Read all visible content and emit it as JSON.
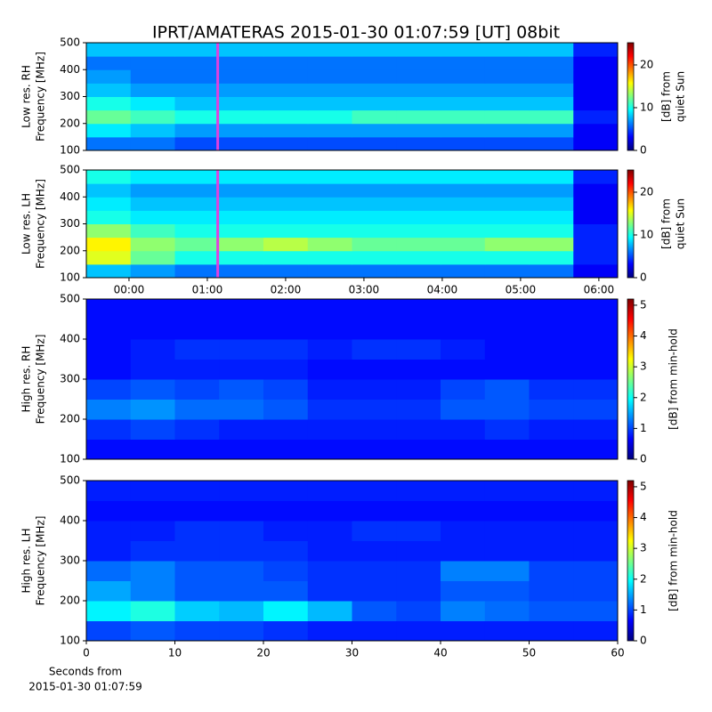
{
  "title": "IPRT/AMATERAS 2015-01-30 01:07:59 [UT]   08bit",
  "chart_data": [
    {
      "type": "heatmap",
      "colormap": "jet",
      "ylabel": [
        "Low res. RH",
        "Frequency [MHz]"
      ],
      "ylim": [
        100,
        500
      ],
      "yticks": [
        100,
        200,
        300,
        400,
        500
      ],
      "xlim": [
        -0.545,
        6.24
      ],
      "marker_x": 1.133,
      "marker_color": "#e040e0",
      "clim": [
        0,
        25.2
      ],
      "cticks": [
        0,
        10,
        20
      ],
      "clabel": [
        "[dB] from",
        "quiet Sun"
      ],
      "z": [
        [
          6,
          6,
          5,
          5,
          5,
          5,
          5,
          5,
          5,
          5,
          5,
          3
        ],
        [
          9,
          8,
          7,
          7,
          7,
          7,
          7,
          7,
          7,
          7,
          7,
          3
        ],
        [
          12,
          11,
          10,
          10,
          10,
          10,
          11,
          11,
          11,
          11,
          11,
          4
        ],
        [
          10,
          9,
          8,
          8,
          8,
          8,
          8,
          8,
          8,
          8,
          8,
          3
        ],
        [
          8,
          7,
          7,
          7,
          7,
          7,
          7,
          7,
          7,
          7,
          7,
          3
        ],
        [
          7,
          6,
          6,
          6,
          6,
          6,
          6,
          6,
          6,
          6,
          6,
          3
        ],
        [
          6,
          6,
          6,
          6,
          6,
          6,
          6,
          6,
          6,
          6,
          6,
          3
        ],
        [
          8,
          8,
          8,
          8,
          8,
          8,
          8,
          8,
          8,
          8,
          8,
          4
        ]
      ]
    },
    {
      "type": "heatmap",
      "colormap": "jet",
      "ylabel": [
        "Low res. LH",
        "Frequency [MHz]"
      ],
      "ylim": [
        100,
        500
      ],
      "yticks": [
        100,
        200,
        300,
        400,
        500
      ],
      "xlim": [
        -0.545,
        6.24
      ],
      "xticks": [
        {
          "value": 0,
          "label": "00:00"
        },
        {
          "value": 1,
          "label": "01:00"
        },
        {
          "value": 2,
          "label": "02:00"
        },
        {
          "value": 3,
          "label": "03:00"
        },
        {
          "value": 4,
          "label": "04:00"
        },
        {
          "value": 5,
          "label": "05:00"
        },
        {
          "value": 6,
          "label": "06:00"
        }
      ],
      "marker_x": 1.133,
      "marker_color": "#e040e0",
      "clim": [
        0,
        25.2
      ],
      "cticks": [
        0,
        10,
        20
      ],
      "clabel": [
        "[dB] from",
        "quiet Sun"
      ],
      "z": [
        [
          8,
          7,
          6,
          6,
          6,
          6,
          6,
          6,
          6,
          6,
          6,
          3
        ],
        [
          15,
          12,
          10,
          10,
          10,
          10,
          10,
          10,
          10,
          10,
          10,
          4
        ],
        [
          16,
          13,
          12,
          13,
          14,
          13,
          12,
          12,
          12,
          13,
          13,
          4
        ],
        [
          13,
          11,
          10,
          10,
          10,
          10,
          10,
          10,
          10,
          10,
          10,
          4
        ],
        [
          10,
          9,
          9,
          9,
          9,
          9,
          9,
          9,
          9,
          9,
          9,
          3
        ],
        [
          9,
          8,
          8,
          8,
          8,
          8,
          8,
          8,
          8,
          8,
          8,
          3
        ],
        [
          8,
          7,
          7,
          7,
          7,
          7,
          7,
          7,
          7,
          7,
          7,
          3
        ],
        [
          10,
          9,
          9,
          9,
          9,
          9,
          9,
          9,
          9,
          9,
          9,
          4
        ]
      ]
    },
    {
      "type": "heatmap",
      "colormap": "jet",
      "ylabel": [
        "High res. RH",
        "Frequency [MHz]"
      ],
      "ylim": [
        100,
        500
      ],
      "yticks": [
        100,
        200,
        300,
        400,
        500
      ],
      "xlim": [
        0,
        60
      ],
      "clim": [
        0,
        5.2
      ],
      "cticks": [
        0,
        1,
        2,
        3,
        4,
        5
      ],
      "clabel": [
        "[dB] from min-hold"
      ],
      "z": [
        [
          0.7,
          0.7,
          0.7,
          0.7,
          0.7,
          0.7,
          0.7,
          0.7,
          0.7,
          0.7,
          0.7,
          0.7
        ],
        [
          0.9,
          1.0,
          0.9,
          0.8,
          0.8,
          0.8,
          0.8,
          0.8,
          0.8,
          0.9,
          0.8,
          0.8
        ],
        [
          1.3,
          1.4,
          1.2,
          1.2,
          1.1,
          0.9,
          0.9,
          0.9,
          1.1,
          1.1,
          1.0,
          1.0
        ],
        [
          1.0,
          1.1,
          1.0,
          1.1,
          1.0,
          0.8,
          0.8,
          0.8,
          1.0,
          1.1,
          0.9,
          0.9
        ],
        [
          0.7,
          0.8,
          0.8,
          0.8,
          0.8,
          0.7,
          0.7,
          0.7,
          0.7,
          0.7,
          0.7,
          0.7
        ],
        [
          0.7,
          0.8,
          0.9,
          0.9,
          0.9,
          0.8,
          0.9,
          0.9,
          0.8,
          0.7,
          0.7,
          0.7
        ],
        [
          0.7,
          0.7,
          0.7,
          0.7,
          0.7,
          0.7,
          0.7,
          0.7,
          0.7,
          0.7,
          0.7,
          0.7
        ],
        [
          0.7,
          0.7,
          0.7,
          0.7,
          0.7,
          0.7,
          0.7,
          0.7,
          0.7,
          0.7,
          0.7,
          0.7
        ]
      ]
    },
    {
      "type": "heatmap",
      "colormap": "jet",
      "ylabel": [
        "High res. LH",
        "Frequency [MHz]"
      ],
      "ylim": [
        100,
        500
      ],
      "yticks": [
        100,
        200,
        300,
        400,
        500
      ],
      "xlim": [
        0,
        60
      ],
      "xticks": [
        0,
        10,
        20,
        30,
        40,
        50,
        60
      ],
      "xlabel": [
        "Seconds from",
        "2015-01-30 01:07:59"
      ],
      "clim": [
        0,
        5.2
      ],
      "cticks": [
        0,
        1,
        2,
        3,
        4,
        5
      ],
      "clabel": [
        "[dB] from min-hold"
      ],
      "z": [
        [
          1.0,
          1.1,
          1.0,
          1.0,
          0.9,
          0.8,
          0.8,
          0.8,
          0.8,
          0.8,
          0.8,
          0.8
        ],
        [
          1.9,
          2.1,
          1.7,
          1.6,
          1.9,
          1.6,
          1.1,
          1.0,
          1.3,
          1.2,
          1.1,
          1.1
        ],
        [
          1.5,
          1.3,
          1.1,
          1.1,
          1.1,
          0.9,
          0.9,
          0.9,
          1.1,
          1.1,
          1.0,
          1.0
        ],
        [
          1.2,
          1.3,
          1.1,
          1.1,
          1.0,
          0.9,
          0.9,
          0.9,
          1.3,
          1.3,
          1.0,
          1.0
        ],
        [
          0.8,
          0.9,
          0.9,
          0.9,
          0.9,
          0.8,
          0.8,
          0.8,
          0.8,
          0.8,
          0.8,
          0.8
        ],
        [
          0.8,
          0.8,
          0.9,
          0.9,
          0.8,
          0.8,
          0.9,
          0.9,
          0.8,
          0.8,
          0.8,
          0.8
        ],
        [
          0.7,
          0.7,
          0.7,
          0.7,
          0.7,
          0.7,
          0.7,
          0.7,
          0.7,
          0.7,
          0.7,
          0.7
        ],
        [
          0.8,
          0.8,
          0.8,
          0.8,
          0.8,
          0.8,
          0.8,
          0.8,
          0.8,
          0.8,
          0.8,
          0.8
        ]
      ]
    }
  ]
}
